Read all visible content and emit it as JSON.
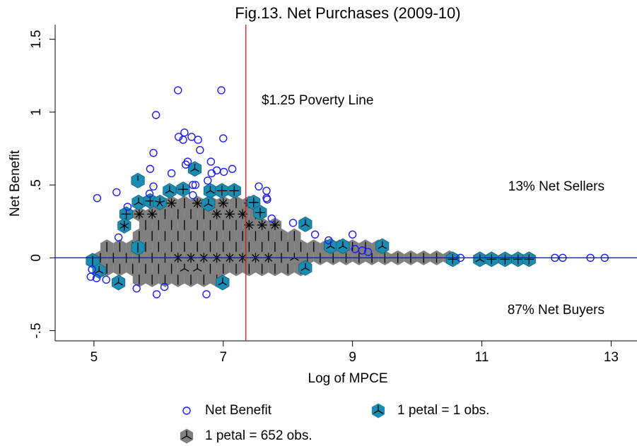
{
  "chart_data": {
    "type": "sunflower",
    "title": "Fig.13. Net Purchases (2009-10)",
    "x_label": "Log of MPCE",
    "y_label": "Net Benefit",
    "xlim": [
      4.4,
      13.4
    ],
    "ylim": [
      -0.57,
      1.6
    ],
    "xticks": [
      5,
      7,
      9,
      11,
      13
    ],
    "yticks": [
      {
        "value": -0.5,
        "label": "-.5"
      },
      0,
      {
        "value": 0.5,
        "label": ".5"
      },
      1,
      1.5
    ],
    "vline": {
      "value": 7.35,
      "color": "#e8110f"
    },
    "hline": {
      "value": 0,
      "color": "#1010ff"
    },
    "annotations": [
      "$1.25 Poverty Line",
      "13% Net Sellers",
      "87% Net Buyers"
    ],
    "series": [
      {
        "name": "Net Benefit",
        "color": "#1a1aff",
        "x": [
          6.3,
          6.97,
          5.96,
          6.4,
          6.31,
          6.51,
          6.38,
          6.61,
          7.0,
          6.64,
          5.92,
          6.81,
          6.45,
          6.42,
          7.14,
          5.87,
          6.2,
          6.82,
          7.01,
          6.9,
          6.76,
          6.53,
          6.57,
          5.92,
          7.55,
          7.67,
          7.67,
          7.68,
          5.05,
          5.35,
          5.86,
          6.53,
          5.52,
          7.75,
          8.08,
          8.42,
          8.63,
          9.0,
          9.04,
          9.15,
          9.24,
          5.38,
          4.97,
          4.95,
          5.04,
          5.19,
          5.66,
          6.09,
          5.97,
          6.74,
          10.67,
          12.13,
          12.25,
          12.68,
          12.9
        ],
        "values": [
          1.15,
          1.15,
          0.98,
          0.86,
          0.83,
          0.83,
          0.81,
          0.81,
          0.82,
          0.74,
          0.72,
          0.66,
          0.66,
          0.64,
          0.61,
          0.61,
          0.58,
          0.58,
          0.59,
          0.6,
          0.53,
          0.5,
          0.5,
          0.49,
          0.49,
          0.46,
          0.41,
          0.4,
          0.41,
          0.45,
          0.44,
          0.43,
          0.35,
          0.27,
          0.24,
          0.16,
          0.12,
          0.16,
          0.06,
          0.05,
          0.04,
          0.14,
          -0.08,
          -0.13,
          -0.14,
          -0.15,
          -0.21,
          -0.2,
          -0.25,
          -0.25,
          0,
          0,
          0,
          0,
          0
        ]
      },
      {
        "name": "1 petal = 1 obs.",
        "color": "#1b8db3",
        "x": [
          5.68,
          6.56,
          6.17,
          6.38,
          6.8,
          6.98,
          7.17,
          5.69,
          5.87,
          6.02,
          5.5,
          6.77,
          7.47,
          5.47,
          8.27,
          7.57,
          4.98,
          5.08,
          5.38,
          5.68,
          6.99,
          8.27,
          8.66,
          8.85,
          9.46,
          10.55,
          10.97,
          11.15,
          11.36,
          11.56,
          11.73
        ],
        "values": [
          0.53,
          0.61,
          0.46,
          0.47,
          0.46,
          0.46,
          0.46,
          0.38,
          0.39,
          0.38,
          0.3,
          0.37,
          0.38,
          0.22,
          0.23,
          0.31,
          -0.02,
          -0.09,
          -0.17,
          0.07,
          -0.17,
          -0.07,
          0.08,
          0.08,
          0.08,
          -0.01,
          -0.01,
          -0.01,
          -0.01,
          -0.01,
          -0.01
        ],
        "petals": [
          1,
          3,
          3,
          4,
          3,
          4,
          4,
          3,
          4,
          5,
          4,
          3,
          4,
          6,
          3,
          4,
          2,
          3,
          3,
          2,
          3,
          3,
          3,
          3,
          3,
          4,
          3,
          4,
          4,
          4,
          4
        ]
      },
      {
        "name": "1 petal = 652 obs.",
        "color": "#808080",
        "rows": [
          {
            "y": 0.375,
            "x": [
              6.0,
              6.2,
              6.4,
              6.6,
              6.8,
              7.0,
              7.2,
              7.4
            ],
            "petals": [
              2,
              8,
              2,
              8,
              2,
              8,
              2,
              8
            ]
          },
          {
            "y": 0.3,
            "x": [
              5.7,
              5.9,
              6.1,
              6.3,
              6.5,
              6.7,
              6.9,
              7.1,
              7.3,
              7.5
            ],
            "petals": [
              8,
              8,
              2,
              2,
              2,
              2,
              8,
              8,
              8,
              2
            ]
          },
          {
            "y": 0.225,
            "x": [
              5.8,
              6.0,
              6.2,
              6.4,
              6.6,
              6.8,
              7.0,
              7.2,
              7.4,
              7.6,
              7.8
            ],
            "petals": [
              2,
              2,
              2,
              2,
              2,
              2,
              2,
              2,
              8,
              8,
              8
            ]
          },
          {
            "y": 0.15,
            "x": [
              5.7,
              5.9,
              6.1,
              6.3,
              6.5,
              6.7,
              6.9,
              7.1,
              7.3,
              7.5,
              7.7,
              7.9,
              8.1
            ],
            "petals": [
              2,
              2,
              2,
              2,
              2,
              2,
              2,
              2,
              2,
              2,
              2,
              2,
              2
            ]
          },
          {
            "y": 0.075,
            "x": [
              5.2,
              5.4,
              5.6,
              5.8,
              6.0,
              6.2,
              6.4,
              6.6,
              6.8,
              7.0,
              7.2,
              7.4,
              7.6,
              7.8,
              8.0,
              8.2,
              8.4,
              8.6,
              8.8,
              9.0,
              9.2,
              9.4
            ],
            "petals": [
              2,
              2,
              2,
              2,
              2,
              2,
              2,
              2,
              2,
              2,
              2,
              2,
              2,
              2,
              2,
              2,
              2,
              2,
              2,
              2,
              2,
              2
            ]
          },
          {
            "y": 0,
            "x": [
              5.1,
              5.3,
              5.5,
              5.7,
              5.9,
              6.1,
              6.3,
              6.5,
              6.7,
              6.9,
              7.1,
              7.3,
              7.5,
              7.7,
              7.9,
              8.1,
              8.3,
              8.5,
              8.7,
              8.9,
              9.1,
              9.3,
              9.5,
              9.7,
              9.9,
              10.1,
              10.3,
              10.5
            ],
            "petals": [
              2,
              2,
              2,
              2,
              2,
              2,
              8,
              8,
              8,
              8,
              8,
              8,
              8,
              8,
              4,
              3,
              2,
              2,
              2,
              2,
              2,
              2,
              2,
              2,
              2,
              2,
              2,
              2
            ]
          },
          {
            "y": -0.075,
            "x": [
              5.2,
              5.4,
              5.6,
              5.8,
              6.0,
              6.2,
              6.4,
              6.6,
              6.8,
              7.0,
              7.2,
              7.4,
              7.6,
              7.8,
              8.0,
              8.2
            ],
            "petals": [
              2,
              2,
              2,
              2,
              2,
              2,
              3,
              3,
              2,
              2,
              2,
              2,
              2,
              2,
              2,
              2
            ]
          },
          {
            "y": -0.15,
            "x": [
              5.7,
              5.9,
              6.1,
              6.3,
              6.5,
              6.7,
              6.9
            ],
            "petals": [
              2,
              2,
              2,
              2,
              2,
              2,
              2
            ]
          }
        ]
      }
    ]
  }
}
